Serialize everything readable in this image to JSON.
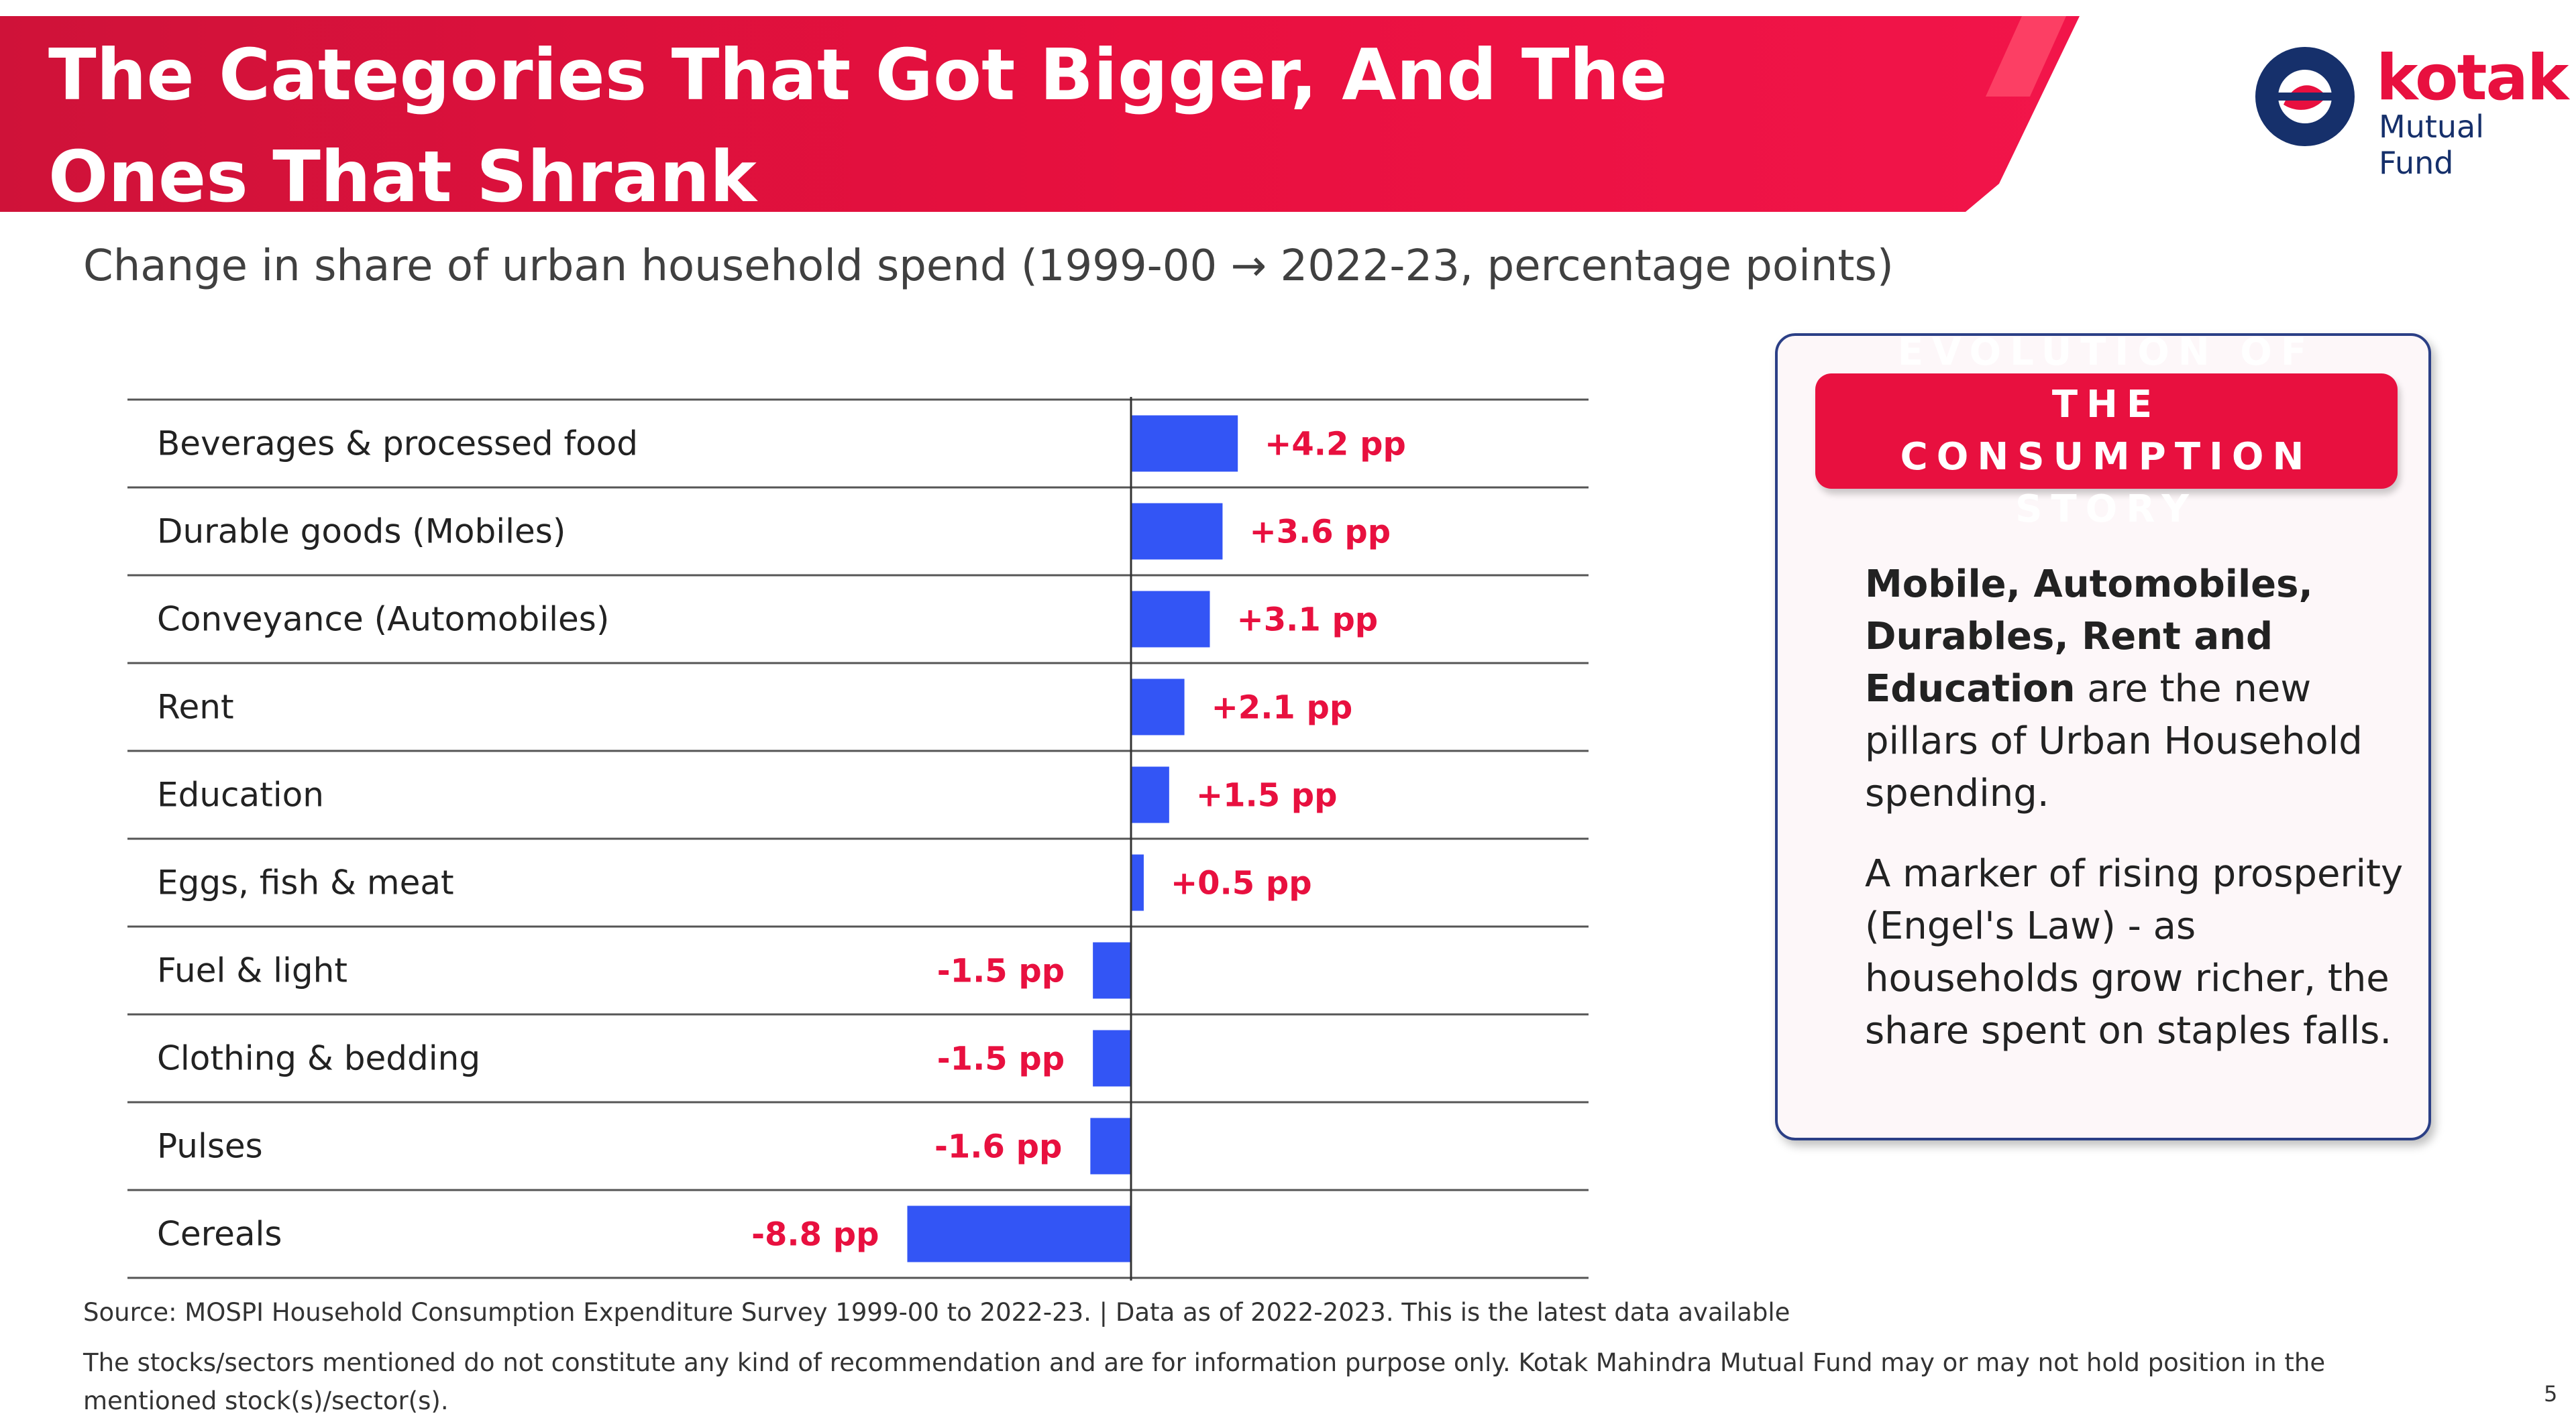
{
  "header": {
    "title": "The Categories That Got Bigger, And The Ones That Shrank",
    "brand_name": "kotak",
    "brand_sub": "Mutual Fund"
  },
  "subtitle": "Change in share of urban household spend (1999-00 → 2022-23, percentage points)",
  "chart_data": {
    "type": "bar",
    "orientation": "horizontal",
    "title": "Change in share of urban household spend (1999-00 → 2022-23, percentage points)",
    "categories": [
      "Beverages & processed food",
      "Durable goods (Mobiles)",
      "Conveyance (Automobiles)",
      "Rent",
      "Education",
      "Eggs, fish & meat",
      "Fuel & light",
      "Clothing & bedding",
      "Pulses",
      "Cereals"
    ],
    "values": [
      4.2,
      3.6,
      3.1,
      2.1,
      1.5,
      0.5,
      -1.5,
      -1.5,
      -1.6,
      -8.8
    ],
    "value_labels": [
      "+4.2 pp",
      "+3.6 pp",
      "+3.1 pp",
      "+2.1 pp",
      "+1.5 pp",
      "+0.5 pp",
      "-1.5 pp",
      "-1.5 pp",
      "-1.6 pp",
      "-8.8 pp"
    ],
    "xlim": [
      -8.8,
      4.2
    ],
    "grid": false,
    "legend": "none",
    "bar_color": "#3355f5",
    "label_color": "#e8103f"
  },
  "card": {
    "heading": "EVOLUTION OF THE CONSUMPTION STORY",
    "para1_bold": "Mobile, Automobiles, Durables, Rent and Education",
    "para1_rest": " are the new pillars of Urban Household spending.",
    "para2": "A marker of rising prosperity (Engel's Law) - as households grow richer, the share spent on staples falls."
  },
  "footer": {
    "source": "Source: MOSPI Household Consumption Expenditure Survey 1999-00 to 2022-23. | Data as of 2022-2023. This is the latest data available",
    "disclaimer": "The stocks/sectors mentioned do not constitute any kind of recommendation and are for information purpose only. Kotak Mahindra Mutual Fund may or may not hold position in the mentioned stock(s)/sector(s).",
    "page_number": "5"
  },
  "colors": {
    "brand_red": "#e8103f",
    "brand_navy": "#16306b",
    "bar_blue": "#3355f5"
  }
}
